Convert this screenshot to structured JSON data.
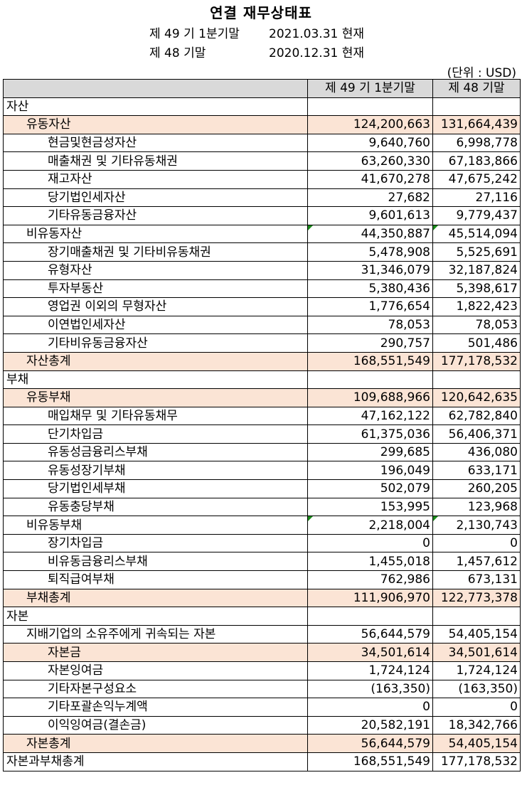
{
  "title": "연결 재무상태표",
  "period": {
    "current_label": "제 49 기 1분기말",
    "current_date": "2021.03.31 현재",
    "prior_label": "제 48 기말",
    "prior_date": "2020.12.31 현재"
  },
  "unit": "(단위 : USD)",
  "table": {
    "headers": [
      "",
      "제 49 기 1분기말",
      "제 48 기말"
    ],
    "rows": [
      {
        "label": "자산",
        "level": 0,
        "highlight": false,
        "current": "",
        "prior": ""
      },
      {
        "label": "유동자산",
        "level": 1,
        "highlight": true,
        "current": "124,200,663",
        "prior": "131,664,439"
      },
      {
        "label": "현금및현금성자산",
        "level": 2,
        "highlight": false,
        "current": "9,640,760",
        "prior": "6,998,778"
      },
      {
        "label": "매출채권 및 기타유동채권",
        "level": 2,
        "highlight": false,
        "current": "63,260,330",
        "prior": "67,183,866"
      },
      {
        "label": "재고자산",
        "level": 2,
        "highlight": false,
        "current": "41,670,278",
        "prior": "47,675,242"
      },
      {
        "label": "당기법인세자산",
        "level": 2,
        "highlight": false,
        "current": "27,682",
        "prior": "27,116"
      },
      {
        "label": "기타유동금융자산",
        "level": 2,
        "highlight": false,
        "current": "9,601,613",
        "prior": "9,779,437"
      },
      {
        "label": "비유동자산",
        "level": 1,
        "highlight": false,
        "current": "44,350,887",
        "prior": "45,514,094",
        "flag": true
      },
      {
        "label": "장기매출채권 및 기타비유동채권",
        "level": 2,
        "highlight": false,
        "current": "5,478,908",
        "prior": "5,525,691"
      },
      {
        "label": "유형자산",
        "level": 2,
        "highlight": false,
        "current": "31,346,079",
        "prior": "32,187,824"
      },
      {
        "label": "투자부동산",
        "level": 2,
        "highlight": false,
        "current": "5,380,436",
        "prior": "5,398,617"
      },
      {
        "label": "영업권 이외의 무형자산",
        "level": 2,
        "highlight": false,
        "current": "1,776,654",
        "prior": "1,822,423"
      },
      {
        "label": "이연법인세자산",
        "level": 2,
        "highlight": false,
        "current": "78,053",
        "prior": "78,053"
      },
      {
        "label": "기타비유동금융자산",
        "level": 2,
        "highlight": false,
        "current": "290,757",
        "prior": "501,486"
      },
      {
        "label": "자산총계",
        "level": 1,
        "highlight": true,
        "current": "168,551,549",
        "prior": "177,178,532"
      },
      {
        "label": "부채",
        "level": 0,
        "highlight": false,
        "current": "",
        "prior": ""
      },
      {
        "label": "유동부채",
        "level": 1,
        "highlight": true,
        "current": "109,688,966",
        "prior": "120,642,635"
      },
      {
        "label": "매입채무 및 기타유동채무",
        "level": 2,
        "highlight": false,
        "current": "47,162,122",
        "prior": "62,782,840"
      },
      {
        "label": "단기차입금",
        "level": 2,
        "highlight": false,
        "current": "61,375,036",
        "prior": "56,406,371"
      },
      {
        "label": "유동성금융리스부채",
        "level": 2,
        "highlight": false,
        "current": "299,685",
        "prior": "436,080"
      },
      {
        "label": "유동성장기부채",
        "level": 2,
        "highlight": false,
        "current": "196,049",
        "prior": "633,171"
      },
      {
        "label": "당기법인세부채",
        "level": 2,
        "highlight": false,
        "current": "502,079",
        "prior": "260,205"
      },
      {
        "label": "유동충당부채",
        "level": 2,
        "highlight": false,
        "current": "153,995",
        "prior": "123,968"
      },
      {
        "label": "비유동부채",
        "level": 1,
        "highlight": false,
        "current": "2,218,004",
        "prior": "2,130,743",
        "flag": true
      },
      {
        "label": "장기차입금",
        "level": 2,
        "highlight": false,
        "current": "0",
        "prior": "0"
      },
      {
        "label": "비유동금융리스부채",
        "level": 2,
        "highlight": false,
        "current": "1,455,018",
        "prior": "1,457,612"
      },
      {
        "label": "퇴직급여부채",
        "level": 2,
        "highlight": false,
        "current": "762,986",
        "prior": "673,131"
      },
      {
        "label": "부채총계",
        "level": 1,
        "highlight": true,
        "current": "111,906,970",
        "prior": "122,773,378"
      },
      {
        "label": "자본",
        "level": 0,
        "highlight": false,
        "current": "",
        "prior": ""
      },
      {
        "label": "지배기업의 소유주에게 귀속되는 자본",
        "level": 1,
        "highlight": false,
        "current": "56,644,579",
        "prior": "54,405,154"
      },
      {
        "label": "자본금",
        "level": 2,
        "highlight": true,
        "current": "34,501,614",
        "prior": "34,501,614"
      },
      {
        "label": "자본잉여금",
        "level": 2,
        "highlight": false,
        "current": "1,724,124",
        "prior": "1,724,124"
      },
      {
        "label": "기타자본구성요소",
        "level": 2,
        "highlight": false,
        "current": "(163,350)",
        "prior": "(163,350)"
      },
      {
        "label": "기타포괄손익누계액",
        "level": 2,
        "highlight": false,
        "current": "0",
        "prior": "0"
      },
      {
        "label": "이익잉여금(결손금)",
        "level": 2,
        "highlight": false,
        "current": "20,582,191",
        "prior": "18,342,766"
      },
      {
        "label": "자본총계",
        "level": 1,
        "highlight": true,
        "current": "56,644,579",
        "prior": "54,405,154"
      },
      {
        "label": "자본과부채총계",
        "level": 0,
        "highlight": false,
        "current": "168,551,549",
        "prior": "177,178,532"
      }
    ]
  },
  "colors": {
    "highlight_row": "#fbe4d5",
    "header_bg": "#d9d9d9",
    "flag": "#1a8a1a"
  }
}
